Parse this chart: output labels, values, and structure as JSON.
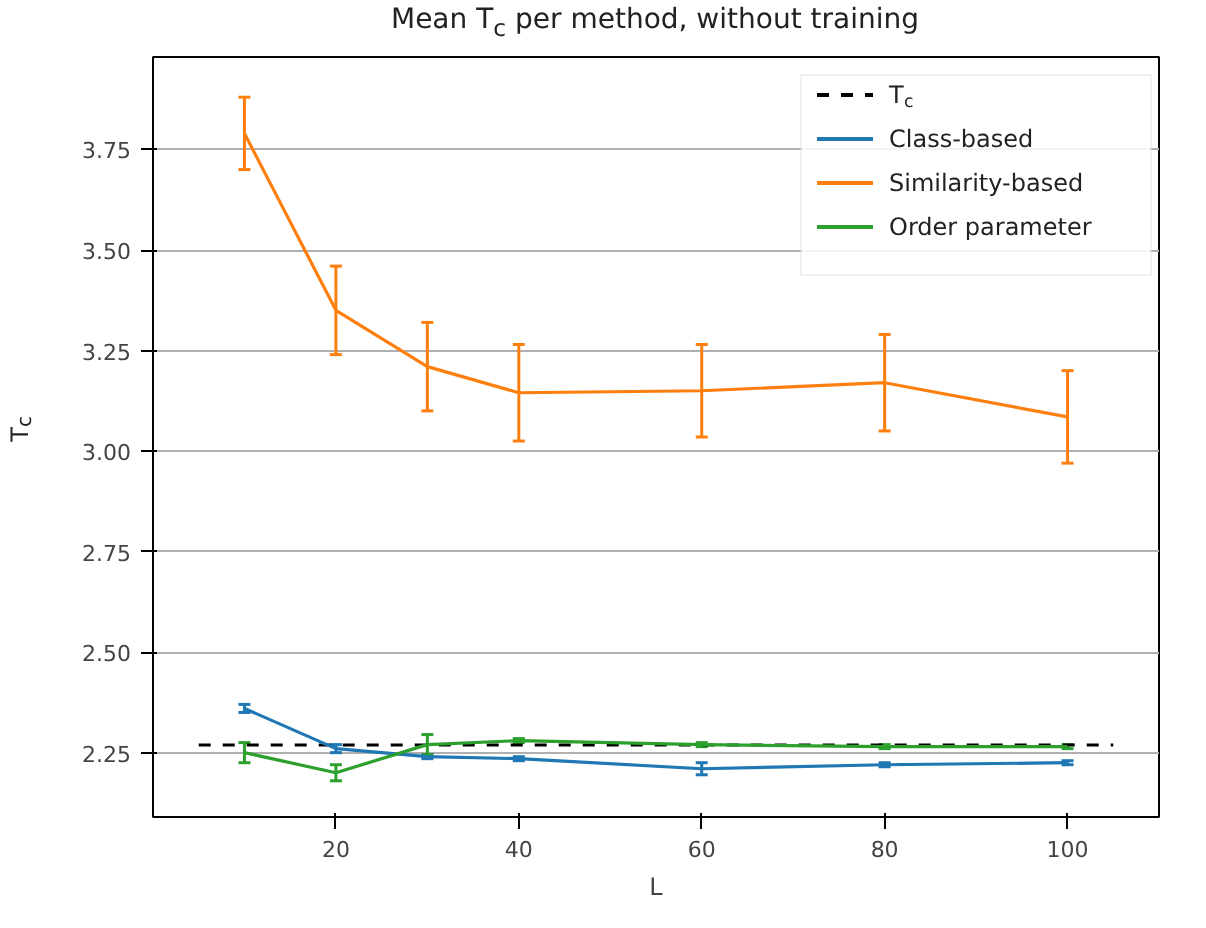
{
  "chart_data": {
    "type": "line",
    "title": "Mean T$_{c}$ per method, without training",
    "xlabel": "L",
    "ylabel": "T$_{c}$",
    "x": [
      10,
      20,
      30,
      40,
      60,
      80,
      100
    ],
    "series": [
      {
        "name": "T$_{c}$",
        "type": "line",
        "color": "#000000",
        "line_style": "dashed",
        "x": [
          5,
          105
        ],
        "values": [
          2.269,
          2.269
        ]
      },
      {
        "name": "Class-based",
        "color": "#1f77b4",
        "values": [
          2.36,
          2.26,
          2.24,
          2.235,
          2.21,
          2.22,
          2.225
        ],
        "errors": [
          0.01,
          0.01,
          0.005,
          0.005,
          0.015,
          0.005,
          0.005
        ]
      },
      {
        "name": "Similarity-based",
        "color": "#ff7f0e",
        "values": [
          3.79,
          3.35,
          3.21,
          3.145,
          3.15,
          3.17,
          3.085
        ],
        "errors": [
          0.09,
          0.11,
          0.11,
          0.12,
          0.115,
          0.12,
          0.115
        ]
      },
      {
        "name": "Order parameter",
        "color": "#2ca02c",
        "values": [
          2.25,
          2.2,
          2.27,
          2.28,
          2.27,
          2.265,
          2.265
        ],
        "errors": [
          0.025,
          0.02,
          0.025,
          0.005,
          0.005,
          0.005,
          0.005
        ]
      }
    ],
    "xlim": [
      0,
      110
    ],
    "ylim": [
      2.09,
      3.98
    ],
    "xticks": [
      20,
      40,
      60,
      80,
      100
    ],
    "yticks": [
      {
        "value": 2.25,
        "label": "2.25"
      },
      {
        "value": 2.5,
        "label": "2.50"
      },
      {
        "value": 2.75,
        "label": "2.75"
      },
      {
        "value": 3.0,
        "label": "3.00"
      },
      {
        "value": 3.25,
        "label": "3.25"
      },
      {
        "value": 3.5,
        "label": "3.50"
      },
      {
        "value": 3.75,
        "label": "3.75"
      }
    ],
    "grid": "y",
    "legend": "top right",
    "line_style": "solid",
    "marker": "none"
  }
}
